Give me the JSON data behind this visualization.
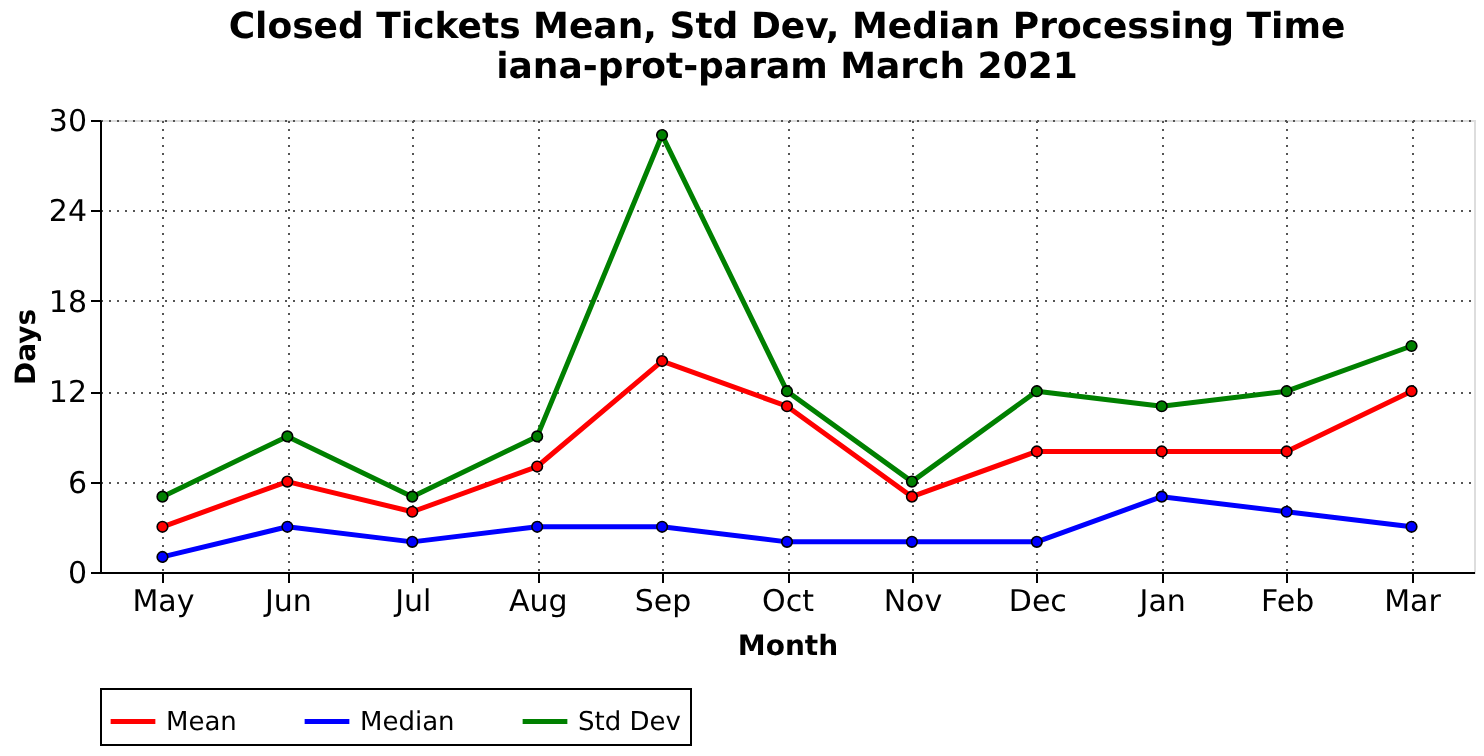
{
  "chart_data": {
    "type": "line",
    "title": "Closed Tickets Mean, Std Dev, Median Processing Time",
    "subtitle": "iana-prot-param March 2021",
    "xlabel": "Month",
    "ylabel": "Days",
    "categories": [
      "May",
      "Jun",
      "Jul",
      "Aug",
      "Sep",
      "Oct",
      "Nov",
      "Dec",
      "Jan",
      "Feb",
      "Mar"
    ],
    "series": [
      {
        "name": "Mean",
        "color": "#ff0000",
        "values": [
          3,
          6,
          4,
          7,
          14,
          11,
          5,
          8,
          8,
          8,
          12
        ]
      },
      {
        "name": "Median",
        "color": "#0000ff",
        "values": [
          1,
          3,
          2,
          3,
          3,
          2,
          2,
          2,
          5,
          4,
          3
        ]
      },
      {
        "name": "Std Dev",
        "color": "#008000",
        "values": [
          5,
          9,
          5,
          9,
          29,
          12,
          6,
          12,
          11,
          12,
          15
        ]
      }
    ],
    "ylim": [
      0,
      30
    ],
    "yticks": [
      0,
      6,
      12,
      18,
      24,
      30
    ],
    "grid": true,
    "legend": "bottom",
    "marker": "circle",
    "line_style": "solid"
  }
}
